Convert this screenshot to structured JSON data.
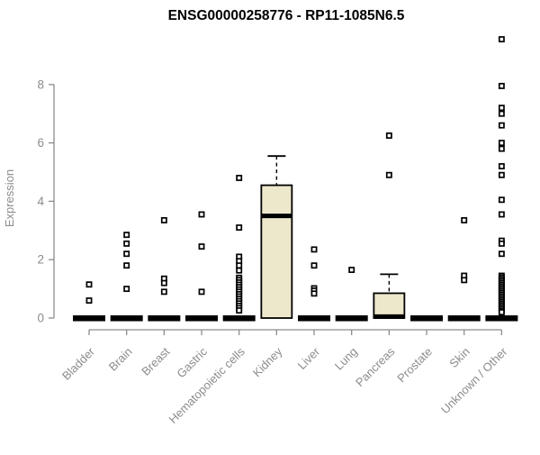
{
  "chart_data": {
    "type": "boxplot",
    "title": "ENSG00000258776 - RP11-1085N6.5",
    "ylabel": "Expression",
    "xlabel": "",
    "ylim": [
      0,
      9.8
    ],
    "yticks": [
      0,
      2,
      4,
      6,
      8
    ],
    "ytick_labels": [
      "0",
      "2",
      "4",
      "6",
      "8"
    ],
    "grid": "off",
    "legend": "none",
    "colors": {
      "axis": "#8c8c8c",
      "tick_label": "#8c8c8c",
      "title": "#000000",
      "box_fill": "#ede8cc",
      "box_stroke": "#000000",
      "outlier_fill": "#ffffff",
      "background": "#ffffff"
    },
    "categories": [
      "Bladder",
      "Brain",
      "Breast",
      "Gastric",
      "Hematopoietic cells",
      "Kidney",
      "Liver",
      "Lung",
      "Pancreas",
      "Prostate",
      "Skin",
      "Unknown / Other"
    ],
    "boxes": [
      {
        "label": "Bladder",
        "q1": 0,
        "median": 0,
        "q3": 0,
        "whisker_low": 0,
        "whisker_high": 0,
        "outliers": [
          1.15,
          0.6
        ]
      },
      {
        "label": "Brain",
        "q1": 0,
        "median": 0,
        "q3": 0,
        "whisker_low": 0,
        "whisker_high": 0,
        "outliers": [
          2.85,
          2.55,
          2.2,
          1.8,
          1.0
        ]
      },
      {
        "label": "Breast",
        "q1": 0,
        "median": 0,
        "q3": 0,
        "whisker_low": 0,
        "whisker_high": 0,
        "outliers": [
          3.35,
          1.35,
          1.2,
          0.9
        ]
      },
      {
        "label": "Gastric",
        "q1": 0,
        "median": 0,
        "q3": 0,
        "whisker_low": 0,
        "whisker_high": 0,
        "outliers": [
          3.55,
          2.45,
          0.9
        ]
      },
      {
        "label": "Hematopoietic cells",
        "q1": 0,
        "median": 0,
        "q3": 0,
        "whisker_low": 0,
        "whisker_high": 0,
        "outliers": [
          4.8,
          3.1,
          2.1,
          1.95,
          1.8,
          1.63,
          1.38,
          1.3,
          1.22,
          1.14,
          1.06,
          0.98,
          0.9,
          0.82,
          0.74,
          0.66,
          0.58,
          0.5,
          0.42,
          0.34,
          0.26
        ]
      },
      {
        "label": "Kidney",
        "q1": 0,
        "median": 3.5,
        "q3": 4.55,
        "whisker_low": 0,
        "whisker_high": 5.55,
        "outliers": []
      },
      {
        "label": "Liver",
        "q1": 0,
        "median": 0,
        "q3": 0,
        "whisker_low": 0,
        "whisker_high": 0,
        "outliers": [
          2.35,
          1.8,
          1.02,
          0.94,
          0.84
        ]
      },
      {
        "label": "Lung",
        "q1": 0,
        "median": 0,
        "q3": 0,
        "whisker_low": 0,
        "whisker_high": 0,
        "outliers": [
          1.65
        ]
      },
      {
        "label": "Pancreas",
        "q1": 0,
        "median": 0.05,
        "q3": 0.85,
        "whisker_low": 0,
        "whisker_high": 1.5,
        "outliers": [
          6.25,
          4.9
        ]
      },
      {
        "label": "Prostate",
        "q1": 0,
        "median": 0,
        "q3": 0,
        "whisker_low": 0,
        "whisker_high": 0,
        "outliers": []
      },
      {
        "label": "Skin",
        "q1": 0,
        "median": 0,
        "q3": 0,
        "whisker_low": 0,
        "whisker_high": 0,
        "outliers": [
          3.35,
          1.45,
          1.3
        ]
      },
      {
        "label": "Unknown / Other",
        "q1": 0,
        "median": 0,
        "q3": 0,
        "whisker_low": 0,
        "whisker_high": 0,
        "outliers": [
          9.55,
          7.95,
          7.2,
          7.0,
          6.6,
          6.0,
          5.8,
          5.2,
          4.9,
          4.05,
          3.55,
          2.65,
          2.55,
          2.2,
          1.45,
          1.39,
          1.33,
          1.27,
          1.21,
          1.15,
          1.09,
          1.03,
          0.97,
          0.91,
          0.85,
          0.79,
          0.73,
          0.67,
          0.61,
          0.55,
          0.49,
          0.43,
          0.37,
          0.31,
          0.25,
          0.2
        ]
      }
    ]
  }
}
